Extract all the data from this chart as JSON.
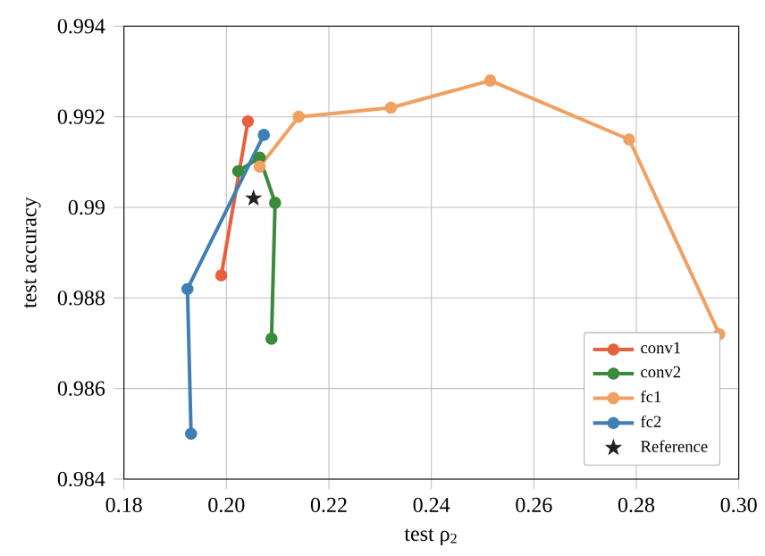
{
  "chart_data": {
    "type": "line",
    "xlabel": "test ρ$_{2}$",
    "ylabel": "test accuracy",
    "xlim": [
      0.18,
      0.3
    ],
    "ylim": [
      0.984,
      0.994
    ],
    "xticks": [
      {
        "value": 0.18,
        "label": "0.18"
      },
      {
        "value": 0.2,
        "label": "0.20"
      },
      {
        "value": 0.22,
        "label": "0.22"
      },
      {
        "value": 0.24,
        "label": "0.24"
      },
      {
        "value": 0.26,
        "label": "0.26"
      },
      {
        "value": 0.28,
        "label": "0.28"
      },
      {
        "value": 0.3,
        "label": "0.30"
      }
    ],
    "yticks": [
      0.984,
      0.986,
      0.988,
      0.99,
      0.992,
      0.994
    ],
    "grid": true,
    "legend": "bottom right",
    "marker": "circle",
    "series": [
      {
        "name": "conv1",
        "color": "#e8603c",
        "x": [
          0.199,
          0.2042
        ],
        "values": [
          0.9885,
          0.9919
        ]
      },
      {
        "name": "conv2",
        "color": "#3a8a3a",
        "x": [
          0.2023,
          0.2065,
          0.2095,
          0.2088
        ],
        "values": [
          0.9908,
          0.9911,
          0.9901,
          0.9871
        ]
      },
      {
        "name": "fc1",
        "color": "#f0a060",
        "x": [
          0.2065,
          0.2141,
          0.2321,
          0.2515,
          0.2786,
          0.2962
        ],
        "values": [
          0.9909,
          0.992,
          0.9922,
          0.9928,
          0.9915,
          0.9872
        ]
      },
      {
        "name": "fc2",
        "color": "#3f7fb5",
        "x": [
          0.1931,
          0.1924,
          0.2073
        ],
        "values": [
          0.985,
          0.9882,
          0.9916
        ]
      },
      {
        "name": "Reference",
        "type": "scatter",
        "marker": "star",
        "color": "#222222",
        "x": [
          0.2053
        ],
        "values": [
          0.9902
        ]
      }
    ]
  }
}
